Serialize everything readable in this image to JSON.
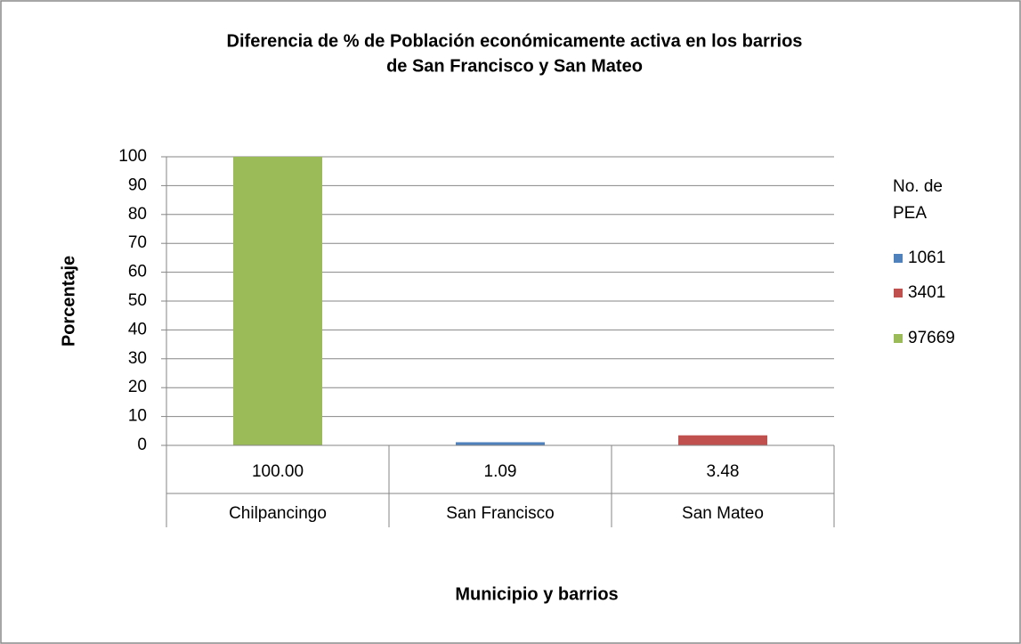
{
  "chart_data": {
    "type": "bar",
    "title": [
      "Diferencia de %  de Población económicamente activa en los barrios",
      "de San Francisco y San Mateo"
    ],
    "x_label": "Municipio y barrios",
    "y_label": "Porcentaje",
    "categories": [
      "Chilpancingo",
      "San Francisco",
      "San Mateo"
    ],
    "category_labels": [
      "100.00",
      "1.09",
      "3.48"
    ],
    "legend_title": "No. de PEA",
    "legend_position": "right",
    "series": [
      {
        "name": "1061",
        "color": "#4f81bd",
        "values": [
          null,
          1.09,
          null
        ]
      },
      {
        "name": "3401",
        "color": "#c0504d",
        "values": [
          null,
          null,
          3.48
        ]
      },
      {
        "name": "97669",
        "color": "#9bbb59",
        "values": [
          100,
          null,
          null
        ]
      }
    ],
    "ylim": [
      0,
      100
    ],
    "yticks": [
      0,
      10,
      20,
      30,
      40,
      50,
      60,
      70,
      80,
      90,
      100
    ],
    "grid": true
  }
}
